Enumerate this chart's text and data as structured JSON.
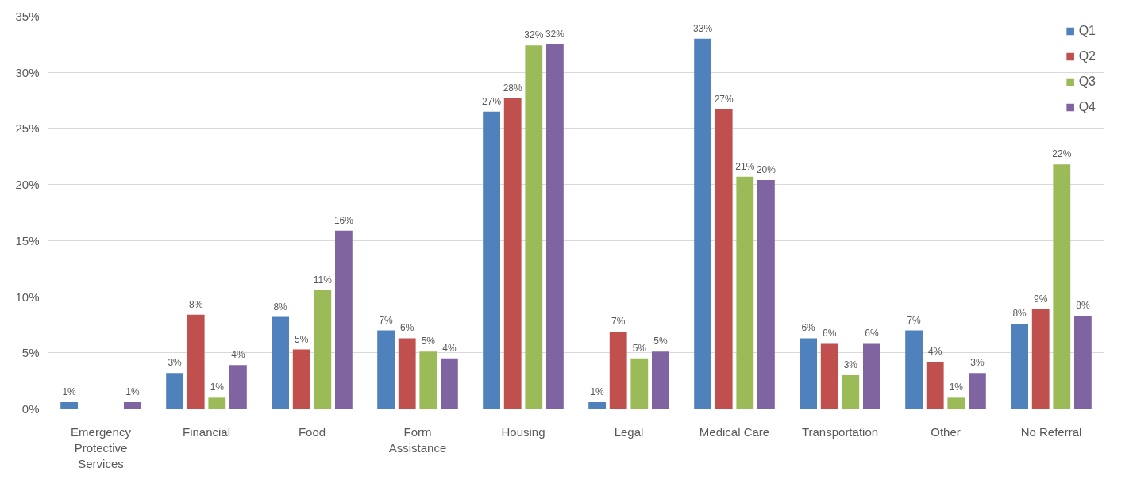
{
  "chart_data": {
    "type": "bar",
    "categories": [
      "Emergency Protective Services",
      "Financial",
      "Food",
      "Form Assistance",
      "Housing",
      "Legal",
      "Medical Care",
      "Transportation",
      "Other",
      "No Referral"
    ],
    "series": [
      {
        "name": "Q1",
        "color": "#4f81bd",
        "values": [
          0.6,
          3.2,
          8.2,
          7.0,
          26.5,
          0.6,
          33.0,
          6.3,
          7.0,
          7.6
        ],
        "value_labels": [
          "1%",
          "3%",
          "8%",
          "7%",
          "27%",
          "1%",
          "33%",
          "6%",
          "7%",
          "8%"
        ]
      },
      {
        "name": "Q2",
        "color": "#c0504d",
        "values": [
          null,
          8.4,
          5.3,
          6.3,
          27.7,
          6.9,
          26.7,
          5.8,
          4.2,
          8.9
        ],
        "value_labels": [
          null,
          "8%",
          "5%",
          "6%",
          "28%",
          "7%",
          "27%",
          "6%",
          "4%",
          "9%"
        ]
      },
      {
        "name": "Q3",
        "color": "#9bbb59",
        "values": [
          null,
          1.0,
          10.6,
          5.1,
          32.4,
          4.5,
          20.7,
          3.0,
          1.0,
          21.8
        ],
        "value_labels": [
          null,
          "1%",
          "11%",
          "5%",
          "32%",
          "5%",
          "21%",
          "3%",
          "1%",
          "22%"
        ]
      },
      {
        "name": "Q4",
        "color": "#8064a2",
        "values": [
          0.6,
          3.9,
          15.9,
          4.5,
          32.5,
          5.1,
          20.4,
          5.8,
          3.2,
          8.3
        ],
        "value_labels": [
          "1%",
          "4%",
          "16%",
          "4%",
          "32%",
          "5%",
          "20%",
          "6%",
          "3%",
          "8%"
        ]
      }
    ],
    "ylim": [
      0,
      35
    ],
    "yticks": [
      {
        "value": 0,
        "label": "0%"
      },
      {
        "value": 5,
        "label": "5%"
      },
      {
        "value": 10,
        "label": "10%"
      },
      {
        "value": 15,
        "label": "15%"
      },
      {
        "value": 20,
        "label": "20%"
      },
      {
        "value": 25,
        "label": "25%"
      },
      {
        "value": 30,
        "label": "30%"
      },
      {
        "value": 35,
        "label": "35%"
      }
    ],
    "grid": "y",
    "legend": "top right"
  }
}
